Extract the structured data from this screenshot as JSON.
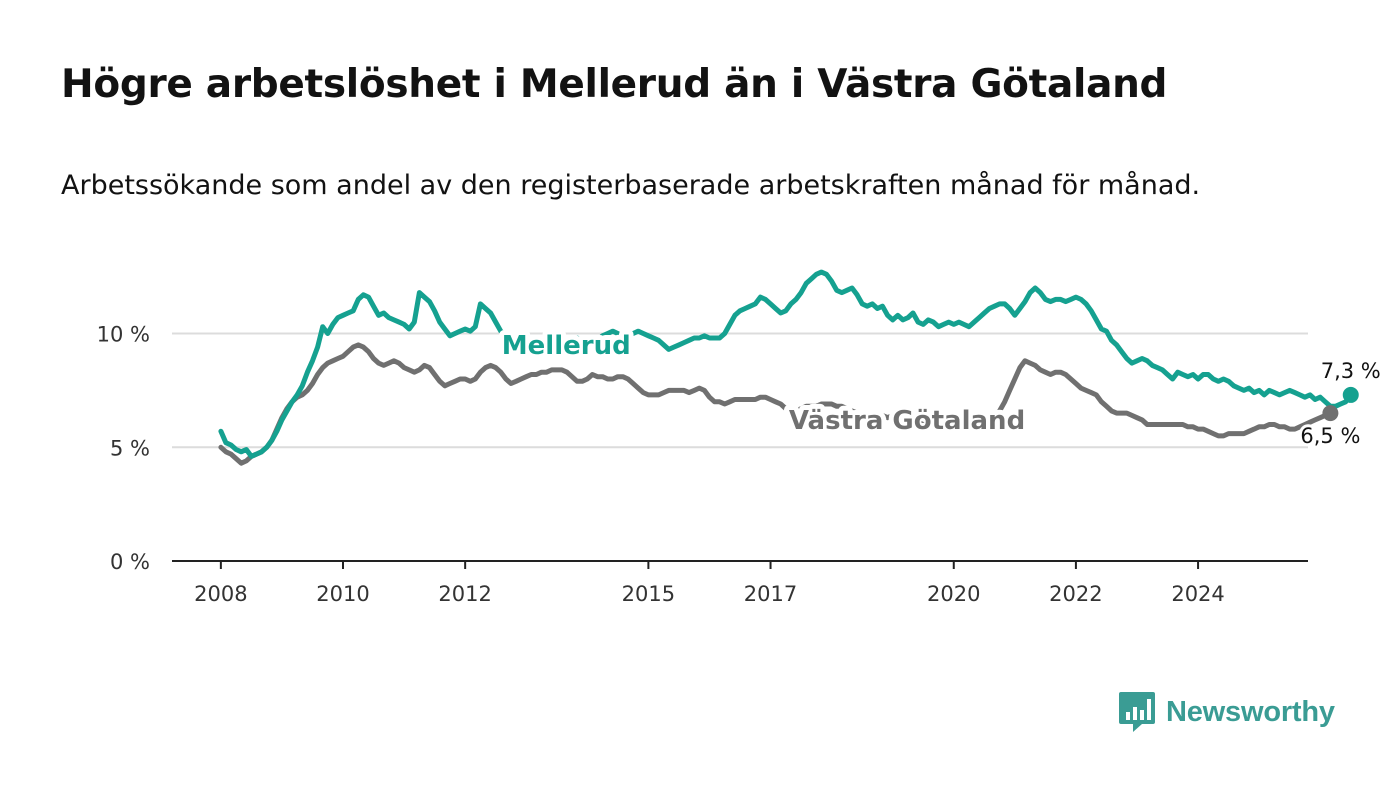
{
  "title": "Högre arbetslöshet i Mellerud än i Västra Götaland",
  "subtitle": "Arbetssökande som andel av den registerbaserade arbetskraften månad för månad.",
  "brand": {
    "name": "Newsworthy",
    "color": "#3a9c94",
    "logo_icon": "chart-speech-bubble-icon"
  },
  "colors": {
    "mellerud": "#15a190",
    "vastra": "#707070",
    "grid": "#dcdcdc",
    "axis": "#222222"
  },
  "chart_data": {
    "type": "line",
    "x_start": "2008-01",
    "x_unit": "month",
    "xlim": [
      2007.2,
      2025.8
    ],
    "ylim": [
      0,
      12
    ],
    "y_ticks": [
      0,
      5,
      10
    ],
    "y_tick_labels": [
      "0 %",
      "5 %",
      "10 %"
    ],
    "x_ticks": [
      2008,
      2010,
      2012,
      2015,
      2017,
      2020,
      2022,
      2024
    ],
    "x_tick_labels": [
      "2008",
      "2010",
      "2012",
      "2015",
      "2017",
      "2020",
      "2022",
      "2024"
    ],
    "grid": "horizontal",
    "series": [
      {
        "name": "Mellerud",
        "end_label": "7,3 %",
        "values": [
          5.7,
          5.2,
          5.1,
          4.9,
          4.8,
          4.9,
          4.6,
          4.7,
          4.8,
          5.0,
          5.3,
          5.7,
          6.2,
          6.6,
          7.0,
          7.3,
          7.7,
          8.3,
          8.8,
          9.4,
          10.3,
          10.0,
          10.4,
          10.7,
          10.8,
          10.9,
          11.0,
          11.5,
          11.7,
          11.6,
          11.2,
          10.8,
          10.9,
          10.7,
          10.6,
          10.5,
          10.4,
          10.2,
          10.5,
          11.8,
          11.6,
          11.4,
          11.0,
          10.5,
          10.2,
          9.9,
          10.0,
          10.1,
          10.2,
          10.1,
          10.3,
          11.3,
          11.1,
          10.9,
          10.5,
          10.1,
          9.9,
          9.5,
          9.3,
          9.0,
          9.4,
          9.5,
          9.6,
          9.6,
          9.7,
          9.8,
          9.6,
          9.5,
          9.6,
          9.7,
          9.8,
          9.6,
          9.5,
          9.6,
          9.7,
          9.9,
          10.0,
          10.1,
          10.0,
          9.8,
          9.9,
          10.0,
          10.1,
          10.0,
          9.9,
          9.8,
          9.7,
          9.5,
          9.3,
          9.4,
          9.5,
          9.6,
          9.7,
          9.8,
          9.8,
          9.9,
          9.8,
          9.8,
          9.8,
          10.0,
          10.4,
          10.8,
          11.0,
          11.1,
          11.2,
          11.3,
          11.6,
          11.5,
          11.3,
          11.1,
          10.9,
          11.0,
          11.3,
          11.5,
          11.8,
          12.2,
          12.4,
          12.6,
          12.7,
          12.6,
          12.3,
          11.9,
          11.8,
          11.9,
          12.0,
          11.7,
          11.3,
          11.2,
          11.3,
          11.1,
          11.2,
          10.8,
          10.6,
          10.8,
          10.6,
          10.7,
          10.9,
          10.5,
          10.4,
          10.6,
          10.5,
          10.3,
          10.4,
          10.5,
          10.4,
          10.5,
          10.4,
          10.3,
          10.5,
          10.7,
          10.9,
          11.1,
          11.2,
          11.3,
          11.3,
          11.1,
          10.8,
          11.1,
          11.4,
          11.8,
          12.0,
          11.8,
          11.5,
          11.4,
          11.5,
          11.5,
          11.4,
          11.5,
          11.6,
          11.5,
          11.3,
          11.0,
          10.6,
          10.2,
          10.1,
          9.7,
          9.5,
          9.2,
          8.9,
          8.7,
          8.8,
          8.9,
          8.8,
          8.6,
          8.5,
          8.4,
          8.2,
          8.0,
          8.3,
          8.2,
          8.1,
          8.2,
          8.0,
          8.2,
          8.2,
          8.0,
          7.9,
          8.0,
          7.9,
          7.7,
          7.6,
          7.5,
          7.6,
          7.4,
          7.5,
          7.3,
          7.5,
          7.4,
          7.3,
          7.4,
          7.5,
          7.4,
          7.3,
          7.2,
          7.3,
          7.1,
          7.2,
          7.0,
          6.8,
          6.8,
          6.9,
          7.0,
          7.3
        ]
      },
      {
        "name": "Västra Götaland",
        "end_label": "6,5 %",
        "values": [
          5.0,
          4.8,
          4.7,
          4.5,
          4.3,
          4.4,
          4.6,
          4.7,
          4.8,
          5.0,
          5.3,
          5.8,
          6.3,
          6.7,
          7.0,
          7.2,
          7.3,
          7.5,
          7.8,
          8.2,
          8.5,
          8.7,
          8.8,
          8.9,
          9.0,
          9.2,
          9.4,
          9.5,
          9.4,
          9.2,
          8.9,
          8.7,
          8.6,
          8.7,
          8.8,
          8.7,
          8.5,
          8.4,
          8.3,
          8.4,
          8.6,
          8.5,
          8.2,
          7.9,
          7.7,
          7.8,
          7.9,
          8.0,
          8.0,
          7.9,
          8.0,
          8.3,
          8.5,
          8.6,
          8.5,
          8.3,
          8.0,
          7.8,
          7.9,
          8.0,
          8.1,
          8.2,
          8.2,
          8.3,
          8.3,
          8.4,
          8.4,
          8.4,
          8.3,
          8.1,
          7.9,
          7.9,
          8.0,
          8.2,
          8.1,
          8.1,
          8.0,
          8.0,
          8.1,
          8.1,
          8.0,
          7.8,
          7.6,
          7.4,
          7.3,
          7.3,
          7.3,
          7.4,
          7.5,
          7.5,
          7.5,
          7.5,
          7.4,
          7.5,
          7.6,
          7.5,
          7.2,
          7.0,
          7.0,
          6.9,
          7.0,
          7.1,
          7.1,
          7.1,
          7.1,
          7.1,
          7.2,
          7.2,
          7.1,
          7.0,
          6.9,
          6.7,
          6.6,
          6.6,
          6.7,
          6.8,
          6.8,
          6.8,
          6.9,
          6.9,
          6.9,
          6.8,
          6.8,
          6.7,
          6.6,
          6.5,
          6.4,
          6.3,
          6.4,
          6.5,
          6.4,
          6.3,
          6.4,
          6.3,
          6.3,
          6.2,
          6.2,
          6.1,
          6.0,
          6.0,
          6.0,
          6.0,
          6.0,
          6.0,
          6.0,
          6.0,
          6.0,
          6.0,
          6.0,
          6.0,
          6.0,
          6.1,
          6.3,
          6.6,
          7.0,
          7.5,
          8.0,
          8.5,
          8.8,
          8.7,
          8.6,
          8.4,
          8.3,
          8.2,
          8.3,
          8.3,
          8.2,
          8.0,
          7.8,
          7.6,
          7.5,
          7.4,
          7.3,
          7.0,
          6.8,
          6.6,
          6.5,
          6.5,
          6.5,
          6.4,
          6.3,
          6.2,
          6.0,
          6.0,
          6.0,
          6.0,
          6.0,
          6.0,
          6.0,
          6.0,
          5.9,
          5.9,
          5.8,
          5.8,
          5.7,
          5.6,
          5.5,
          5.5,
          5.6,
          5.6,
          5.6,
          5.6,
          5.7,
          5.8,
          5.9,
          5.9,
          6.0,
          6.0,
          5.9,
          5.9,
          5.8,
          5.8,
          5.9,
          6.0,
          6.1,
          6.2,
          6.3,
          6.4,
          6.5
        ]
      }
    ]
  }
}
